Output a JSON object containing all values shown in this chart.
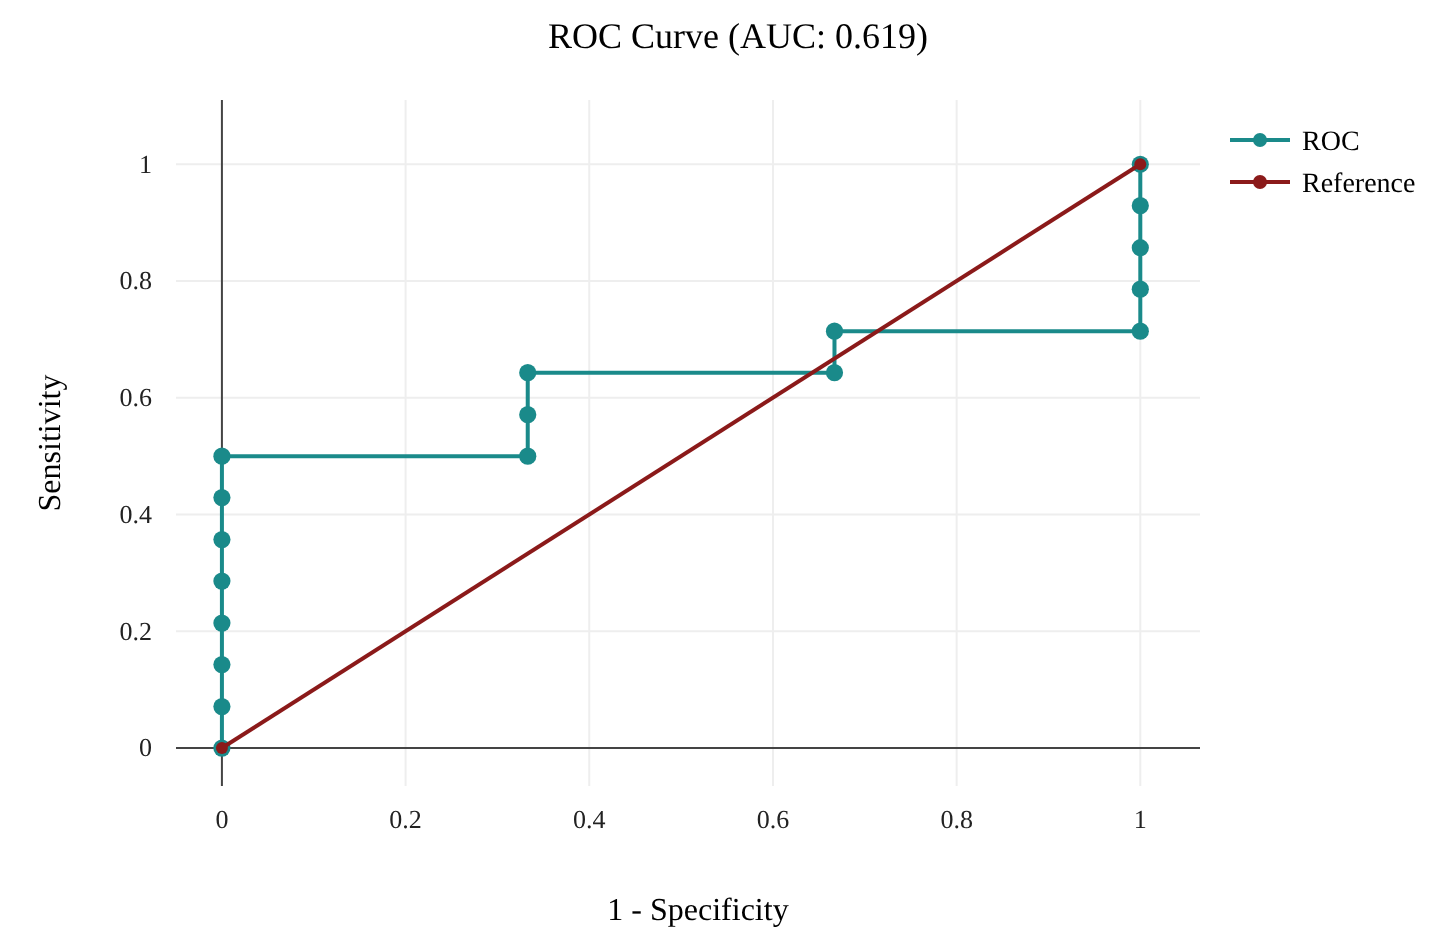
{
  "chart_data": {
    "type": "line",
    "title": "ROC Curve (AUC: 0.619)",
    "xlabel": "1 - Specificity",
    "ylabel": "Sensitivity",
    "xlim": [
      -0.05,
      1.065
    ],
    "ylim": [
      -0.065,
      1.11
    ],
    "xticks": [
      0,
      0.2,
      0.4,
      0.6,
      0.8,
      1
    ],
    "yticks": [
      0,
      0.2,
      0.4,
      0.6,
      0.8,
      1
    ],
    "grid": true,
    "legend": "top right",
    "marker": "circle",
    "line_style": "solid",
    "series": [
      {
        "name": "ROC",
        "color": "#1a8a8a",
        "x": [
          0,
          0,
          0,
          0,
          0,
          0,
          0,
          0,
          0.333,
          0.333,
          0.333,
          0.667,
          0.667,
          1,
          1,
          1,
          1,
          1
        ],
        "values": [
          0,
          0.071,
          0.143,
          0.214,
          0.286,
          0.357,
          0.429,
          0.5,
          0.5,
          0.571,
          0.643,
          0.643,
          0.714,
          0.714,
          0.786,
          0.857,
          0.929,
          1
        ]
      },
      {
        "name": "Reference",
        "color": "#8b1a1a",
        "x": [
          0,
          1
        ],
        "values": [
          0,
          1
        ]
      }
    ]
  }
}
